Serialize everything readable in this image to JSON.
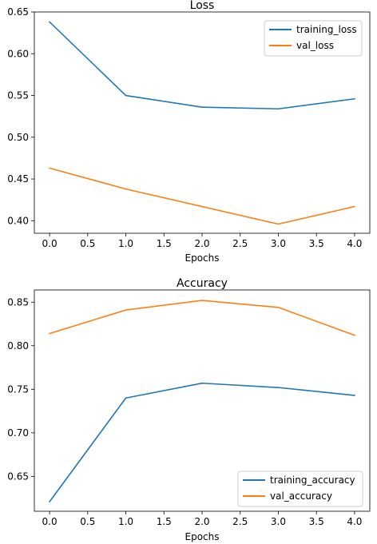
{
  "colors": {
    "series1": "#1f77b4",
    "series2": "#ff7f0e"
  },
  "chart_data": [
    {
      "type": "line",
      "title": "Loss",
      "xlabel": "Epochs",
      "ylabel": "",
      "xlim": [
        -0.2,
        4.2
      ],
      "ylim": [
        0.385,
        0.65
      ],
      "xticks": [
        0,
        0.5,
        1,
        1.5,
        2,
        2.5,
        3,
        3.5,
        4
      ],
      "xtick_labels": [
        "0.0",
        "0.5",
        "1.0",
        "1.5",
        "2.0",
        "2.5",
        "3.0",
        "3.5",
        "4.0"
      ],
      "yticks": [
        0.4,
        0.45,
        0.5,
        0.55,
        0.6,
        0.65
      ],
      "ytick_labels": [
        "0.40",
        "0.45",
        "0.50",
        "0.55",
        "0.60",
        "0.65"
      ],
      "legend_position": "top-right",
      "grid": false,
      "x": [
        0,
        1,
        2,
        3,
        4
      ],
      "series": [
        {
          "name": "training_loss",
          "values": [
            0.638,
            0.55,
            0.536,
            0.534,
            0.546
          ]
        },
        {
          "name": "val_loss",
          "values": [
            0.463,
            0.438,
            0.417,
            0.396,
            0.417
          ]
        }
      ]
    },
    {
      "type": "line",
      "title": "Accuracy",
      "xlabel": "Epochs",
      "ylabel": "",
      "xlim": [
        -0.2,
        4.2
      ],
      "ylim": [
        0.61,
        0.864
      ],
      "xticks": [
        0,
        0.5,
        1,
        1.5,
        2,
        2.5,
        3,
        3.5,
        4
      ],
      "xtick_labels": [
        "0.0",
        "0.5",
        "1.0",
        "1.5",
        "2.0",
        "2.5",
        "3.0",
        "3.5",
        "4.0"
      ],
      "yticks": [
        0.65,
        0.7,
        0.75,
        0.8,
        0.85
      ],
      "ytick_labels": [
        "0.65",
        "0.70",
        "0.75",
        "0.80",
        "0.85"
      ],
      "legend_position": "bottom-right",
      "grid": false,
      "x": [
        0,
        1,
        2,
        3,
        4
      ],
      "series": [
        {
          "name": "training_accuracy",
          "values": [
            0.621,
            0.74,
            0.757,
            0.752,
            0.743
          ]
        },
        {
          "name": "val_accuracy",
          "values": [
            0.814,
            0.841,
            0.852,
            0.844,
            0.812
          ]
        }
      ]
    }
  ]
}
